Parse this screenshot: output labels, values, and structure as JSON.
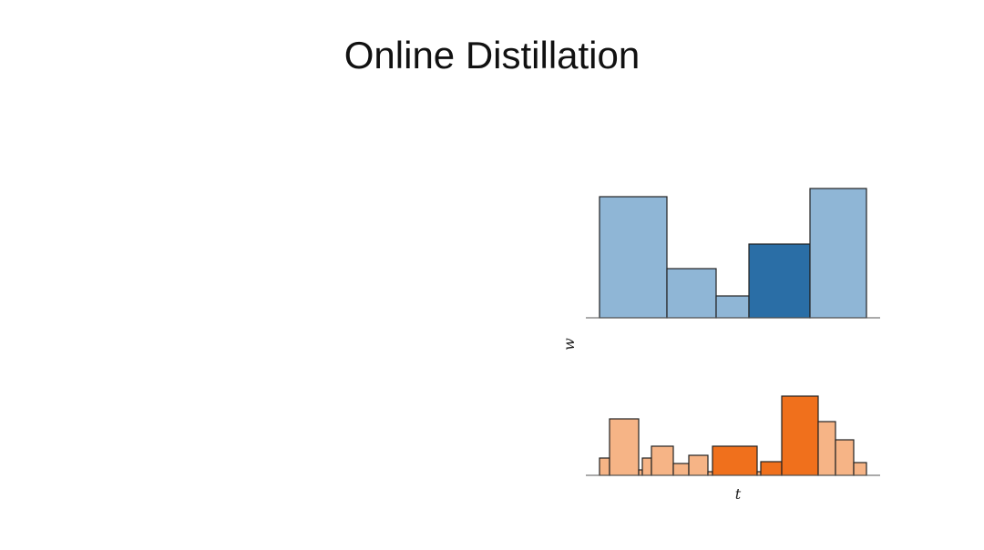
{
  "title": "Online Distillation",
  "chart_data": [
    {
      "type": "histogram",
      "ylabel": "w",
      "bins": [
        15,
        89,
        143,
        179,
        246,
        308
      ],
      "values": [
        133,
        54,
        24,
        81,
        142
      ],
      "colors": [
        "#8fb6d6",
        "#8fb6d6",
        "#8fb6d6",
        "#2a6ea6",
        "#8fb6d6"
      ],
      "xlim": [
        0,
        323
      ],
      "ylim": [
        0,
        150
      ]
    },
    {
      "type": "histogram",
      "xlabel": "t",
      "bins": [
        15,
        26,
        58,
        62,
        72,
        96,
        113,
        134,
        139,
        188,
        192,
        215,
        255,
        274,
        294,
        308
      ],
      "values": [
        19,
        62,
        6,
        19,
        32,
        13,
        22,
        4,
        32,
        4,
        15,
        87,
        59,
        39,
        14
      ],
      "colors": [
        "#f6b486",
        "#f6b486",
        "#f6b486",
        "#f6b486",
        "#f6b486",
        "#f6b486",
        "#f6b486",
        "#f6b486",
        "#f0701c",
        "#f6b486",
        "#f0701c",
        "#f0701c",
        "#f6b486",
        "#f6b486",
        "#f6b486"
      ],
      "xlim": [
        0,
        323
      ],
      "ylim": [
        0,
        90
      ]
    }
  ]
}
